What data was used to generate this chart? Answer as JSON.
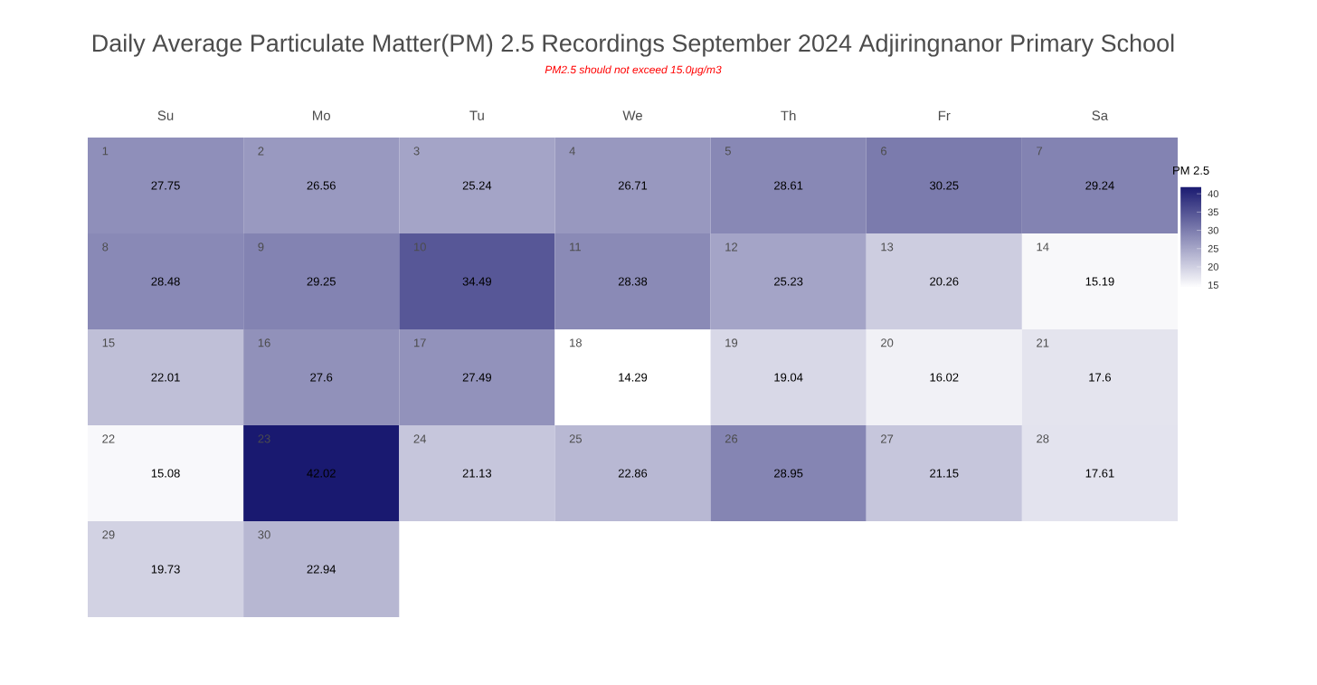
{
  "chart_data": {
    "type": "heatmap",
    "title": "Daily Average Particulate Matter(PM) 2.5 Recordings September 2024 Adjiringnanor Primary School",
    "subtitle": "PM2.5 should not exceed 15.0μg/m3",
    "clabel": "PM 2.5",
    "categories": [
      "Su",
      "Mo",
      "Tu",
      "We",
      "Th",
      "Fr",
      "Sa"
    ],
    "y_categories": [
      null,
      null,
      null,
      null,
      null
    ],
    "cells": [
      [
        27.75,
        26.56,
        25.24,
        26.71,
        28.61,
        30.25,
        29.24
      ],
      [
        28.48,
        29.25,
        34.49,
        28.38,
        25.23,
        20.26,
        15.19
      ],
      [
        22.01,
        27.6,
        27.49,
        14.29,
        19.04,
        16.02,
        17.6
      ],
      [
        15.08,
        42.02,
        21.13,
        22.86,
        28.95,
        21.15,
        17.61
      ],
      [
        19.73,
        22.94,
        null,
        null,
        null,
        null,
        null
      ]
    ],
    "annotations": [
      "1",
      "2",
      "3",
      "4",
      "5",
      "6",
      "7",
      "8",
      "9",
      "10",
      "11",
      "12",
      "13",
      "14",
      "15",
      "16",
      "17",
      "18",
      "19",
      "20",
      "21",
      "22",
      "23",
      "24",
      "25",
      "26",
      "27",
      "28",
      "29",
      "30"
    ],
    "data_labels": true,
    "clim": [
      14.29,
      42.02
    ],
    "cticks": [
      15,
      20,
      25,
      30,
      35,
      40
    ]
  }
}
